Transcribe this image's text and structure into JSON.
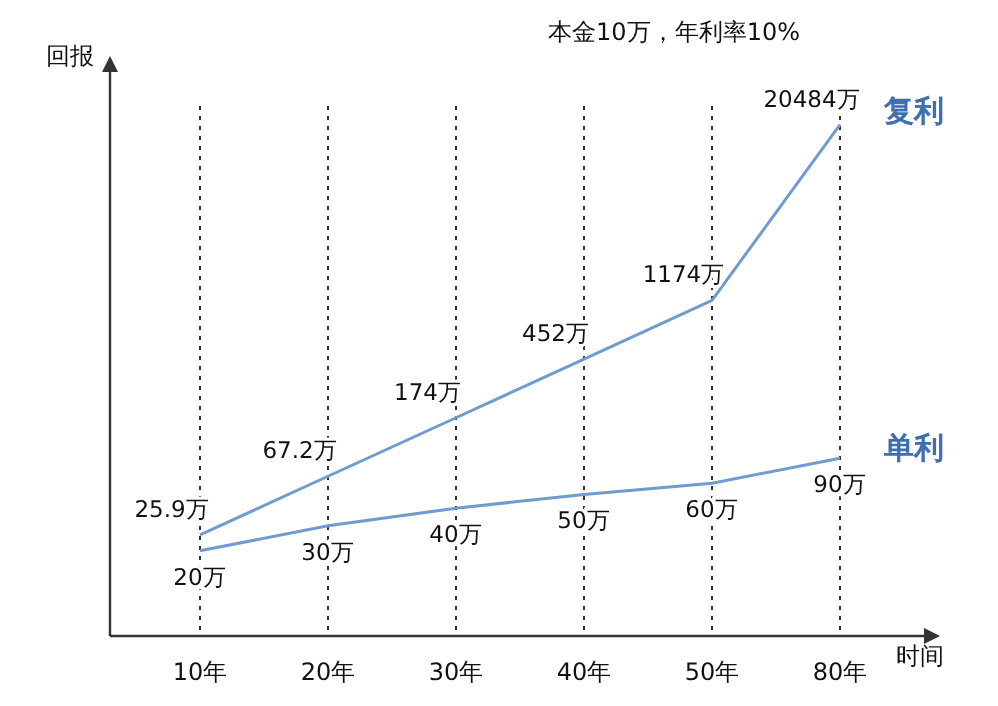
{
  "chart_data": {
    "type": "line",
    "title": "本金10万，年利率10%",
    "xlabel": "时间",
    "ylabel": "回报",
    "categories": [
      "10年",
      "20年",
      "30年",
      "40年",
      "50年",
      "80年"
    ],
    "log": true,
    "grid": "x",
    "tick_labels": "x",
    "marker": "none",
    "series": [
      {
        "name": "复利",
        "color": "#6f9bd1",
        "values": [
          25.9,
          67.2,
          174,
          452,
          1174,
          20484
        ],
        "value_labels": [
          "25.9万",
          "67.2万",
          "174万",
          "452万",
          "1174万",
          "20484万"
        ]
      },
      {
        "name": "单利",
        "color": "#6f9bd1",
        "values": [
          20,
          30,
          40,
          50,
          60,
          90
        ],
        "value_labels": [
          "20万",
          "30万",
          "40万",
          "50万",
          "60万",
          "90万"
        ]
      }
    ]
  }
}
